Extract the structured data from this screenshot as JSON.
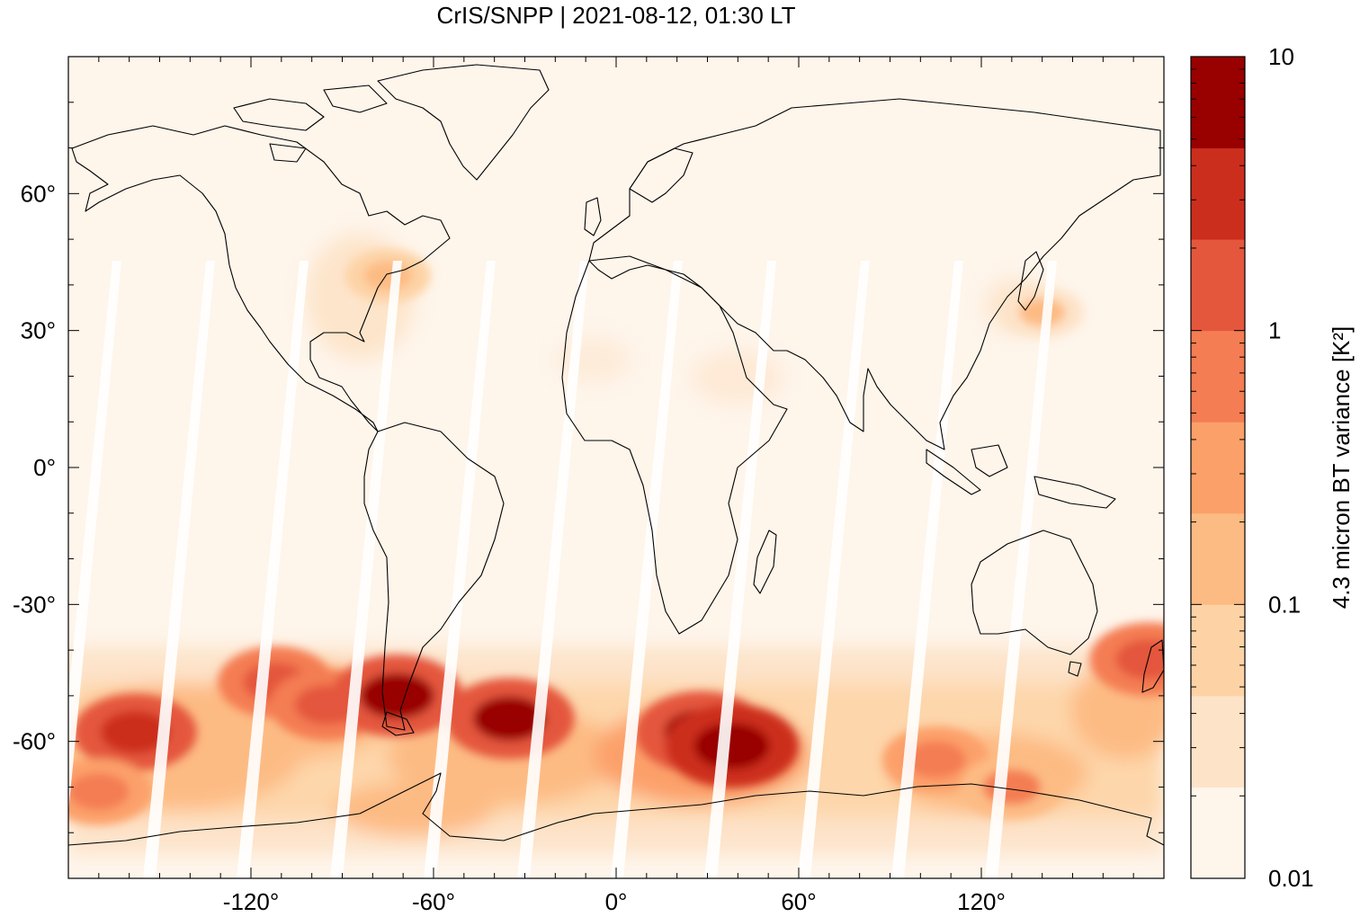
{
  "title": "CrIS/SNPP | 2021-08-12, 01:30 LT",
  "map": {
    "projection": "equirectangular",
    "lon_range": [
      -180,
      180
    ],
    "lat_range": [
      -90,
      90
    ],
    "background_color": "#fef5eb",
    "x_ticks": [
      {
        "value": -120,
        "label": "-120°"
      },
      {
        "value": -60,
        "label": "-60°"
      },
      {
        "value": 0,
        "label": "0°"
      },
      {
        "value": 60,
        "label": "60°"
      },
      {
        "value": 120,
        "label": "120°"
      }
    ],
    "y_ticks": [
      {
        "value": 60,
        "label": "60°"
      },
      {
        "value": 30,
        "label": "30°"
      },
      {
        "value": 0,
        "label": "0°"
      },
      {
        "value": -30,
        "label": "-30°"
      },
      {
        "value": -60,
        "label": "-60°"
      }
    ],
    "features": [
      "coastlines",
      "white orbital gaps between swaths",
      "elevated variance band over the Southern Ocean"
    ]
  },
  "colorbar": {
    "title": "4.3 micron BT variance [K²]",
    "scale": "log",
    "range": [
      0.01,
      10
    ],
    "tick_labels": [
      "10",
      "1",
      "0.1",
      "0.01"
    ],
    "bin_colors": [
      "#fef5eb",
      "#fde3c8",
      "#fdd3a6",
      "#fdbb84",
      "#fca06a",
      "#f47d53",
      "#e4573d",
      "#cc2e1e",
      "#990000"
    ]
  },
  "chart_data": {
    "type": "heatmap",
    "title": "CrIS/SNPP | 2021-08-12, 01:30 LT",
    "colorbar_label": "4.3 micron BT variance [K²]",
    "scale": "log",
    "vmin": 0.01,
    "vmax": 10,
    "colorbar_ticks": [
      0.01,
      0.1,
      1,
      10
    ],
    "xlim": [
      -180,
      180
    ],
    "ylim": [
      -90,
      90
    ],
    "xticks": [
      -120,
      -60,
      0,
      60,
      120
    ],
    "yticks": [
      60,
      30,
      0,
      -30,
      -60
    ],
    "hotspots": [
      {
        "lon": -158,
        "lat": -58,
        "value": 3
      },
      {
        "lon": -112,
        "lat": -47,
        "value": 1.5
      },
      {
        "lon": -95,
        "lat": -52,
        "value": 1.5
      },
      {
        "lon": -72,
        "lat": -50,
        "value": 6
      },
      {
        "lon": -35,
        "lat": -55,
        "value": 5
      },
      {
        "lon": 28,
        "lat": -58,
        "value": 6
      },
      {
        "lon": 38,
        "lat": -61,
        "value": 7
      },
      {
        "lon": -170,
        "lat": -71,
        "value": 0.8
      },
      {
        "lon": 105,
        "lat": -64,
        "value": 0.8
      },
      {
        "lon": 130,
        "lat": -70,
        "value": 0.6
      },
      {
        "lon": 175,
        "lat": -42,
        "value": 2
      },
      {
        "lon": -75,
        "lat": 42,
        "value": 0.15
      },
      {
        "lon": 140,
        "lat": 34,
        "value": 0.12
      }
    ]
  }
}
